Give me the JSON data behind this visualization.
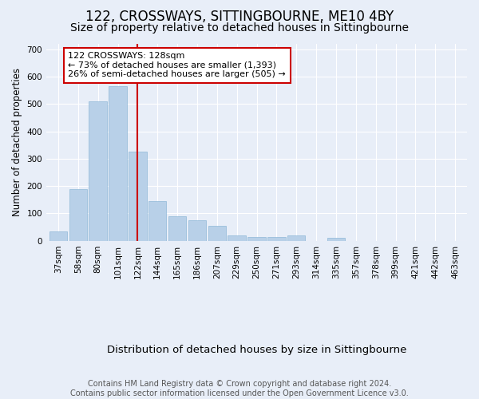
{
  "title": "122, CROSSWAYS, SITTINGBOURNE, ME10 4BY",
  "subtitle": "Size of property relative to detached houses in Sittingbourne",
  "xlabel": "Distribution of detached houses by size in Sittingbourne",
  "ylabel": "Number of detached properties",
  "categories": [
    "37sqm",
    "58sqm",
    "80sqm",
    "101sqm",
    "122sqm",
    "144sqm",
    "165sqm",
    "186sqm",
    "207sqm",
    "229sqm",
    "250sqm",
    "271sqm",
    "293sqm",
    "314sqm",
    "335sqm",
    "357sqm",
    "378sqm",
    "399sqm",
    "421sqm",
    "442sqm",
    "463sqm"
  ],
  "values": [
    35,
    190,
    510,
    565,
    325,
    145,
    90,
    75,
    55,
    20,
    15,
    15,
    20,
    0,
    10,
    0,
    0,
    0,
    0,
    0,
    0
  ],
  "bar_color": "#b8d0e8",
  "bar_edge_color": "#8fb8d8",
  "vline_x_index": 4,
  "vline_color": "#cc0000",
  "annotation_text": "122 CROSSWAYS: 128sqm\n← 73% of detached houses are smaller (1,393)\n26% of semi-detached houses are larger (505) →",
  "annotation_box_facecolor": "#ffffff",
  "annotation_box_edgecolor": "#cc0000",
  "footer": "Contains HM Land Registry data © Crown copyright and database right 2024.\nContains public sector information licensed under the Open Government Licence v3.0.",
  "bg_color": "#e8eef8",
  "plot_bg_color": "#e8eef8",
  "ylim": [
    0,
    720
  ],
  "yticks": [
    0,
    100,
    200,
    300,
    400,
    500,
    600,
    700
  ],
  "grid_color": "#ffffff",
  "title_fontsize": 12,
  "subtitle_fontsize": 10,
  "xlabel_fontsize": 9.5,
  "ylabel_fontsize": 8.5,
  "tick_fontsize": 7.5,
  "annotation_fontsize": 8,
  "footer_fontsize": 7
}
